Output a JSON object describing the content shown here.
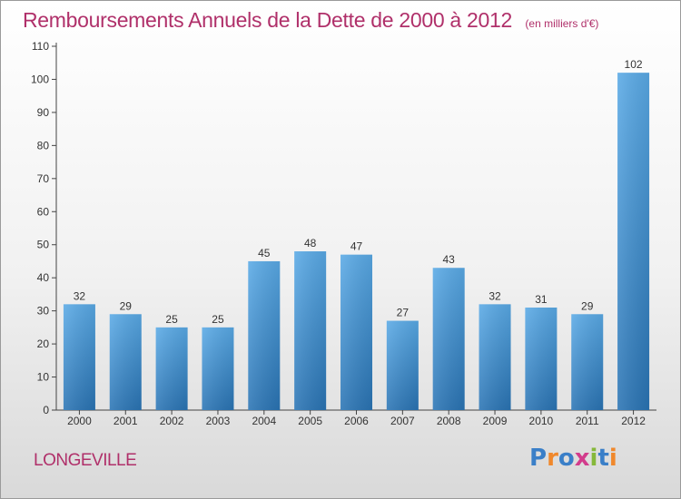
{
  "header": {
    "title": "Remboursements Annuels de la Dette de 2000 à 2012",
    "unit": "(en milliers d'€)"
  },
  "footer": {
    "commune": "LONGEVILLE",
    "brand": "Proxiti",
    "brand_letters": [
      "P",
      "r",
      "o",
      "x",
      "i",
      "t",
      "i"
    ],
    "brand_colors": [
      "#3a7fc8",
      "#f0882c",
      "#3a7fc8",
      "#d23c8c",
      "#86b83a",
      "#3a7fc8",
      "#f0882c"
    ]
  },
  "colors": {
    "bar_top": "#5aaae6",
    "bar_bottom": "#2a74b4",
    "axis": "#444444",
    "grid": "#bbbbbb",
    "text": "#333333",
    "accent": "#b0306a"
  },
  "chart_data": {
    "type": "bar",
    "title": "Remboursements Annuels de la Dette de 2000 à 2012",
    "xlabel": "",
    "ylabel": "",
    "categories": [
      "2000",
      "2001",
      "2002",
      "2003",
      "2004",
      "2005",
      "2006",
      "2007",
      "2008",
      "2009",
      "2010",
      "2011",
      "2012"
    ],
    "values": [
      32,
      29,
      25,
      25,
      45,
      48,
      47,
      27,
      43,
      32,
      31,
      29,
      102
    ],
    "ylim": [
      0,
      110
    ],
    "yticks": [
      0,
      10,
      20,
      30,
      40,
      50,
      60,
      70,
      80,
      90,
      100,
      110
    ],
    "grid": false,
    "legend": "none"
  }
}
